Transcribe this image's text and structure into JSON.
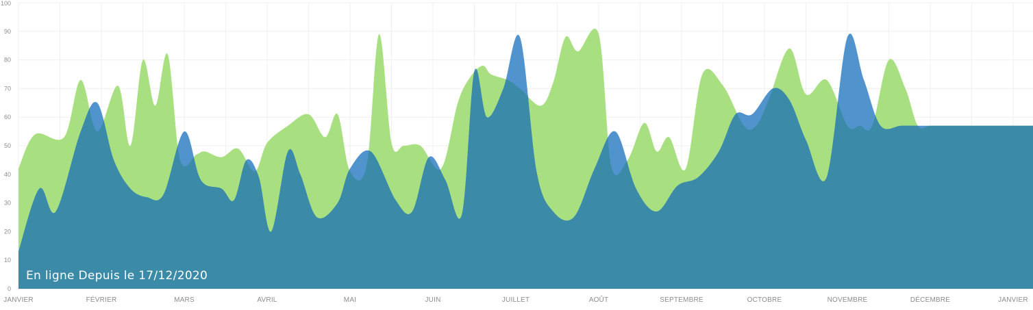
{
  "chart_data": {
    "type": "area",
    "title": "",
    "xlabel": "",
    "ylabel": "",
    "ylim": [
      0,
      100
    ],
    "y_ticks": [
      "0",
      "10",
      "20",
      "30",
      "40",
      "50",
      "60",
      "70",
      "80",
      "90",
      "100"
    ],
    "x_ticks": [
      "JANVIER",
      "FÉVRIER",
      "MARS",
      "AVRIL",
      "MAI",
      "JUIN",
      "JUILLET",
      "AOÛT",
      "SEPTEMBRE",
      "OCTOBRE",
      "NOVEMBRE",
      "DÉCEMBRE",
      "JANVIER"
    ],
    "x_range": [
      0,
      12.3
    ],
    "grid": true,
    "legend": "none",
    "annotation": "En ligne Depuis le 17/12/2020",
    "series": [
      {
        "color": "#a8df80",
        "x": [
          0,
          0.2,
          0.55,
          0.75,
          0.95,
          1.2,
          1.35,
          1.5,
          1.65,
          1.8,
          1.95,
          2.15,
          2.25,
          2.45,
          2.65,
          2.85,
          3.0,
          3.25,
          3.5,
          3.7,
          3.85,
          4.0,
          4.2,
          4.35,
          4.5,
          4.65,
          4.85,
          5.1,
          5.3,
          5.45,
          5.6,
          5.7,
          5.9,
          6.05,
          6.3,
          6.45,
          6.6,
          6.75,
          7.0,
          7.15,
          7.35,
          7.55,
          7.7,
          7.85,
          8.05,
          8.25,
          8.5,
          8.75,
          8.9,
          9.05,
          9.3,
          9.5,
          9.75,
          10.0,
          10.15,
          10.3,
          10.5,
          10.7,
          10.85,
          11.0,
          11.2,
          11.45,
          11.6,
          11.85,
          12.0,
          12.2,
          12.3
        ],
        "y": [
          42,
          54,
          53,
          73,
          55,
          71,
          50,
          80,
          64,
          82,
          45,
          47,
          48,
          46,
          49,
          41,
          51,
          57,
          61,
          53,
          61,
          41,
          43,
          89,
          51,
          50,
          50,
          42,
          65,
          74,
          78,
          75,
          73,
          70,
          64,
          72,
          88,
          83,
          89,
          43,
          45,
          58,
          48,
          53,
          42,
          75,
          71,
          57,
          57,
          66,
          84,
          68,
          73,
          57,
          57,
          57,
          80,
          70,
          57,
          57,
          57,
          57,
          57,
          57,
          57,
          57,
          57
        ]
      },
      {
        "color": "#4a8fca",
        "x": [
          0,
          0.25,
          0.45,
          0.75,
          0.95,
          1.15,
          1.35,
          1.55,
          1.75,
          2.0,
          2.2,
          2.45,
          2.6,
          2.75,
          2.9,
          3.05,
          3.25,
          3.4,
          3.6,
          3.85,
          4.0,
          4.25,
          4.55,
          4.75,
          4.95,
          5.15,
          5.35,
          5.5,
          5.65,
          5.85,
          6.05,
          6.25,
          6.45,
          6.7,
          6.95,
          7.2,
          7.45,
          7.7,
          7.95,
          8.2,
          8.45,
          8.65,
          8.85,
          9.1,
          9.3,
          9.5,
          9.75,
          10.0,
          10.2,
          10.4,
          10.65,
          10.9,
          11.15,
          11.4,
          11.6,
          11.85,
          12.1,
          12.3
        ],
        "y": [
          13,
          35,
          27,
          55,
          65,
          45,
          35,
          32,
          33,
          55,
          38,
          35,
          31,
          45,
          39,
          20,
          48,
          40,
          25,
          30,
          42,
          48,
          31,
          27,
          46,
          38,
          26,
          76,
          60,
          70,
          88,
          41,
          27,
          25,
          42,
          55,
          35,
          27,
          36,
          39,
          48,
          61,
          61,
          70,
          66,
          52,
          39,
          88,
          73,
          57,
          57,
          57,
          57,
          57,
          57,
          57,
          57,
          57
        ]
      }
    ]
  }
}
